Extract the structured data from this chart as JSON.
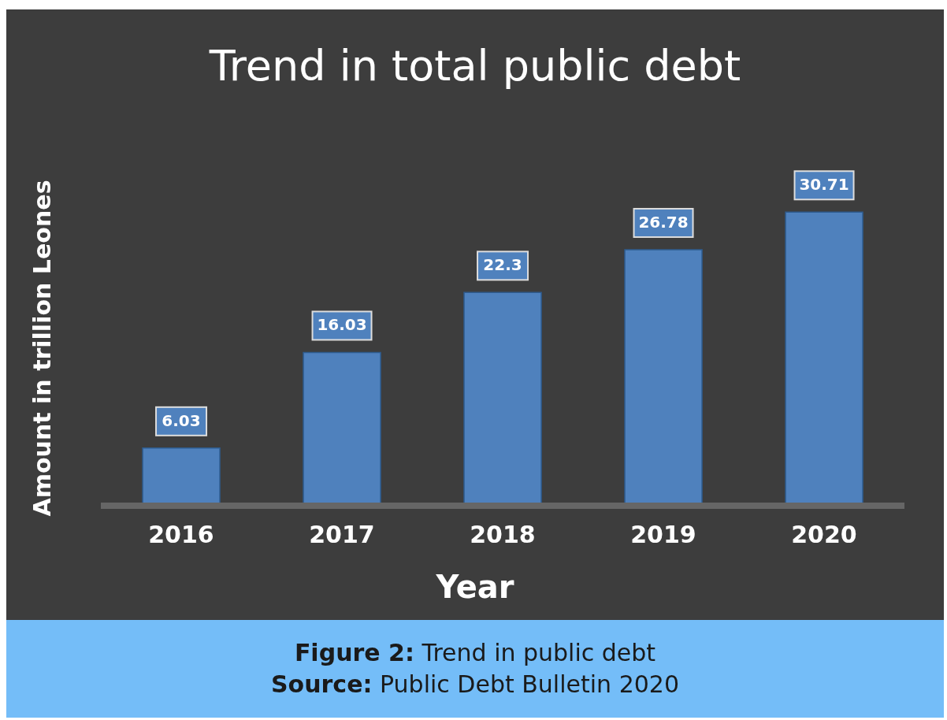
{
  "chart_data": {
    "type": "bar",
    "title": "Trend in total public debt",
    "xlabel": "Year",
    "ylabel": "Amount in trillion Leones",
    "categories": [
      "2016",
      "2017",
      "2018",
      "2019",
      "2020"
    ],
    "values": [
      6.03,
      16.03,
      22.3,
      26.78,
      30.71
    ],
    "color": "#4f81bd",
    "data_labels": true,
    "annotations": [
      "Figure 2: Trend in public debt",
      "Source: Public Debt Bulletin 2020"
    ]
  }
}
